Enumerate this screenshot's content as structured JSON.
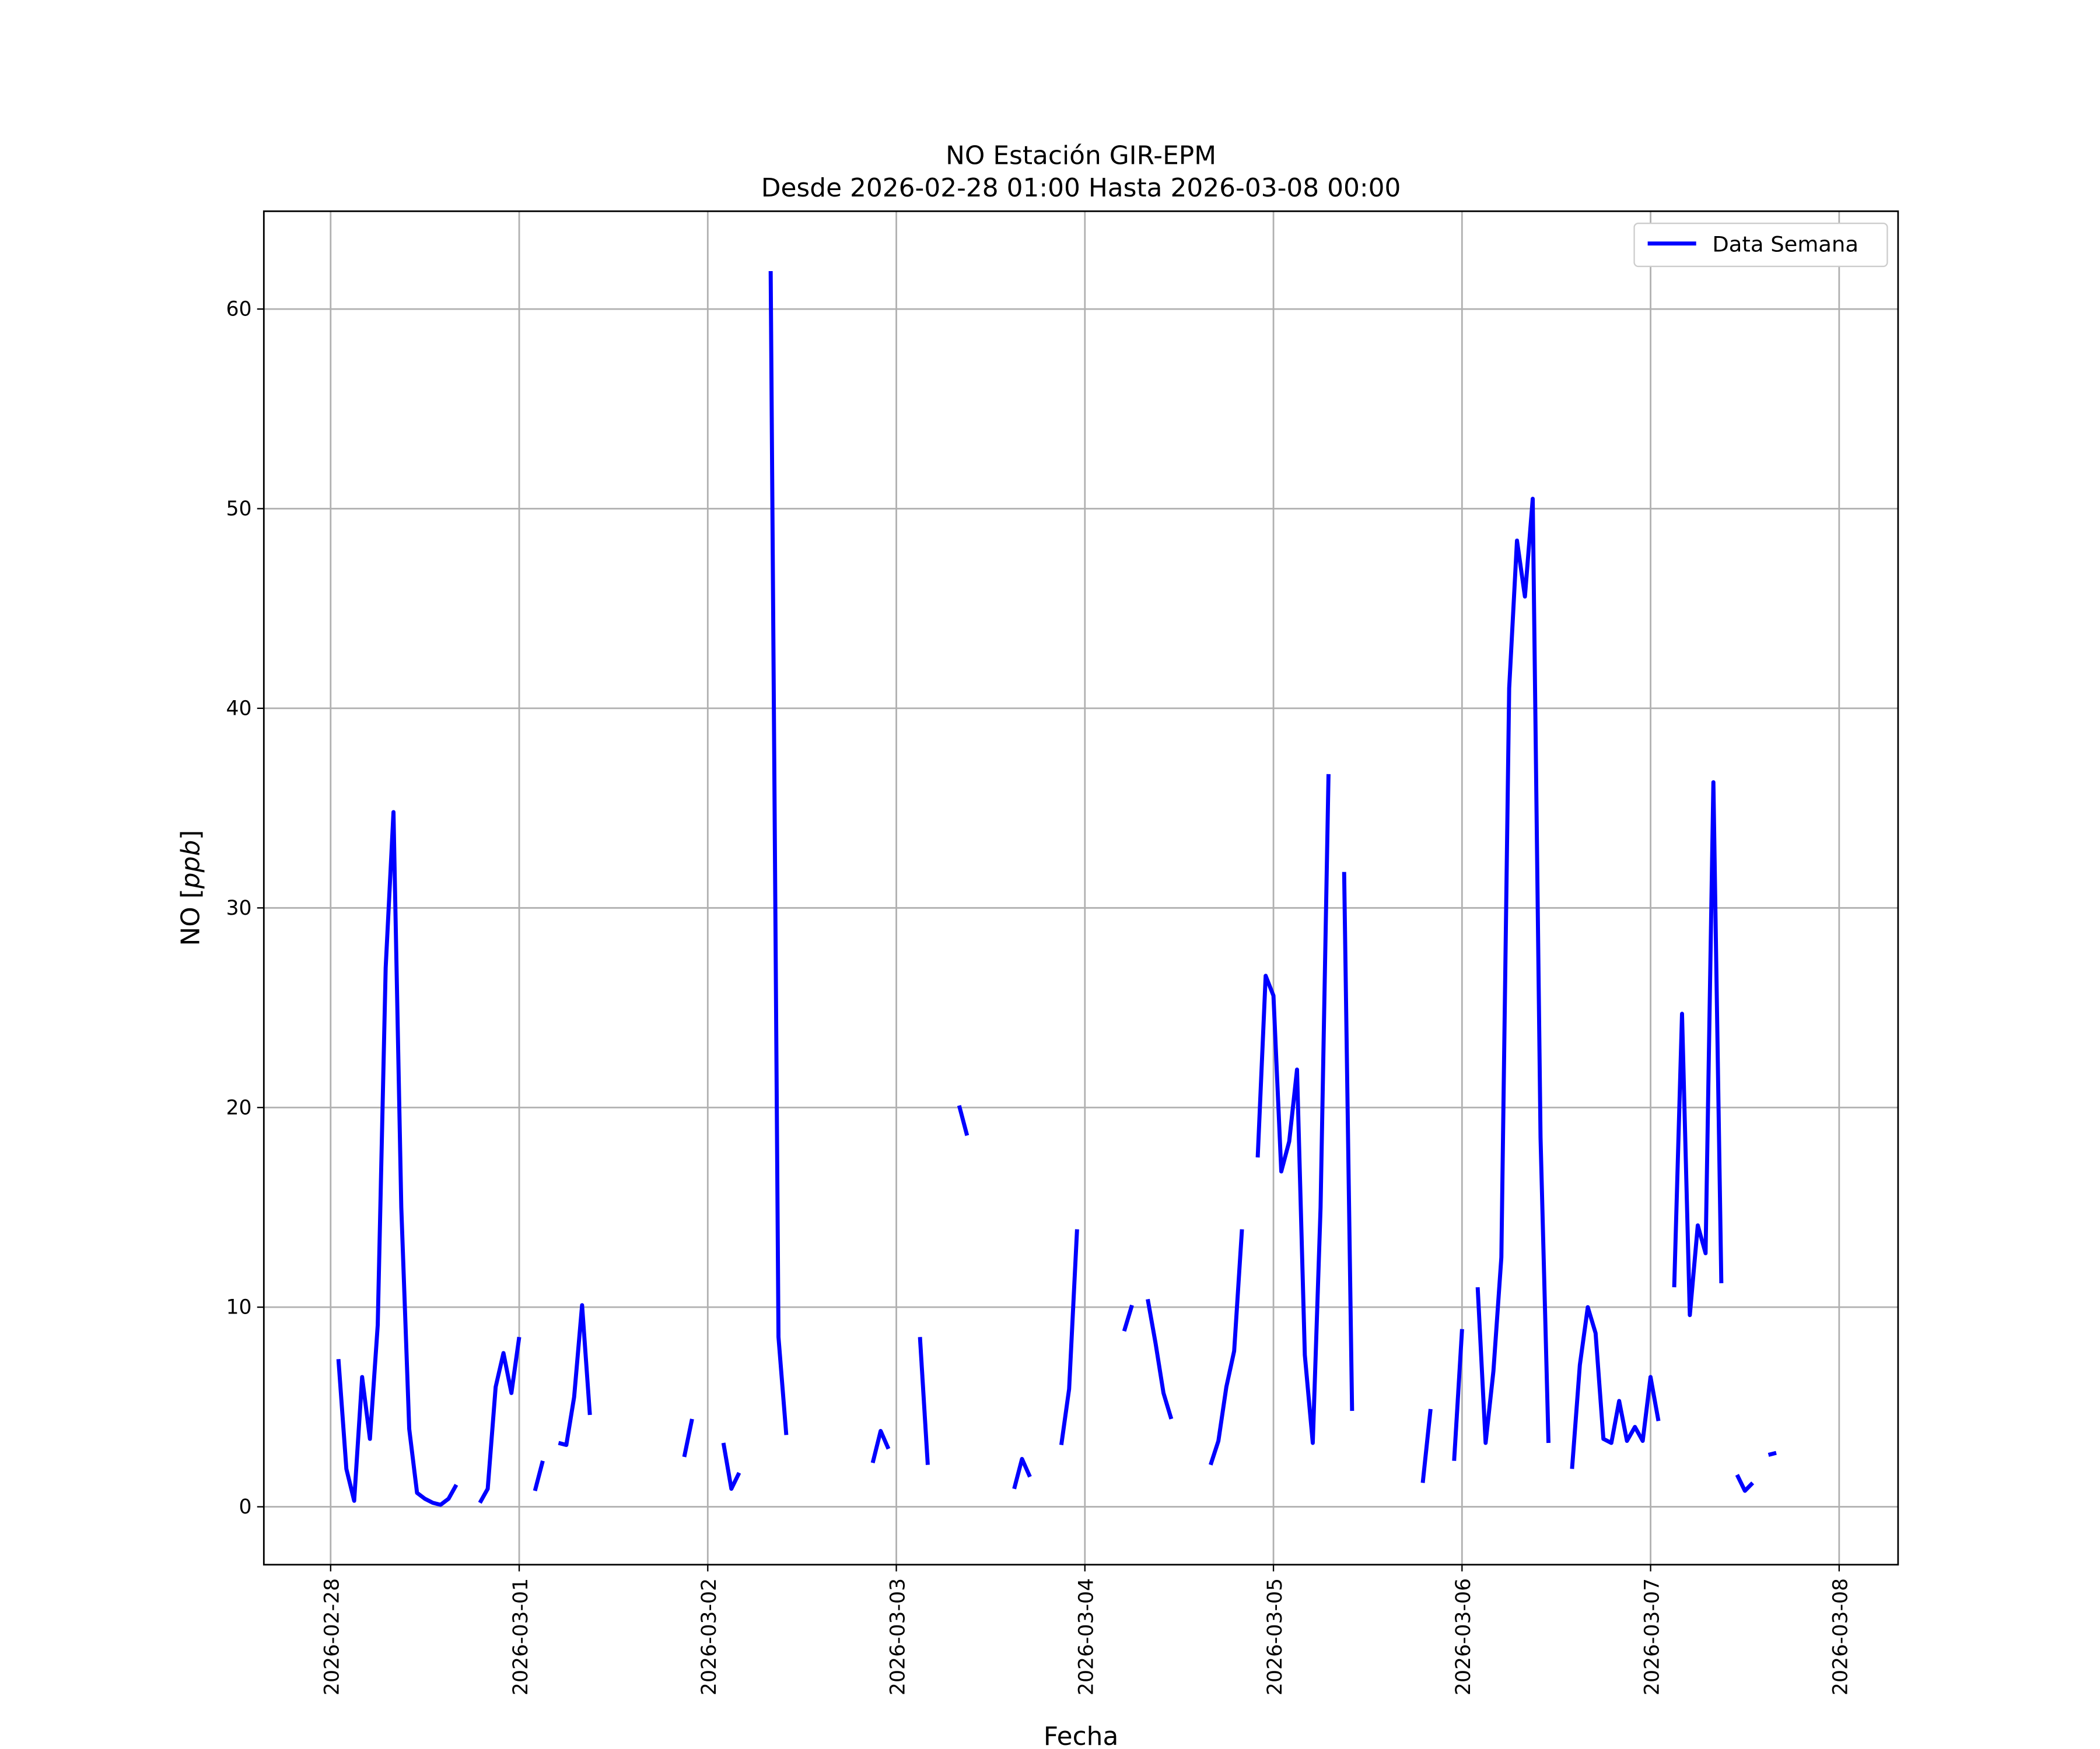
{
  "chart_data": {
    "type": "line",
    "title": "NO Estación GIR-EPM",
    "subtitle": "Desde 2026-02-28 01:00 Hasta 2026-03-08 00:00",
    "xlabel": "Fecha",
    "ylabel_prefix": "NO [",
    "ylabel_unit": "ppb",
    "ylabel_suffix": "]",
    "xlim": [
      "2026-02-27 15:30",
      "2026-03-08 07:30"
    ],
    "ylim": [
      -2.9,
      64.9
    ],
    "xticks": [
      "2026-02-28",
      "2026-03-01",
      "2026-03-02",
      "2026-03-03",
      "2026-03-04",
      "2026-03-05",
      "2026-03-06",
      "2026-03-07",
      "2026-03-08"
    ],
    "yticks": [
      0,
      10,
      20,
      30,
      40,
      50,
      60
    ],
    "grid": true,
    "legend_position": "top-right",
    "colors": {
      "series": "#0000ff",
      "grid": "#b0b0b0"
    },
    "series": [
      {
        "name": "Data Semana",
        "interval_hours": 1,
        "segments": [
          {
            "start": "2026-02-28 01:00",
            "values": [
              7.4,
              1.9,
              0.3,
              6.5,
              3.4,
              9.1,
              27,
              34.8,
              15,
              3.9,
              0.7,
              0.4,
              0.2,
              0.1,
              0.4,
              1.1
            ]
          },
          {
            "start": "2026-02-28 19:00",
            "values": [
              0.2,
              0.9,
              6.0,
              7.7,
              5.7,
              8.5
            ]
          },
          {
            "start": "2026-03-01 02:00",
            "values": [
              0.8,
              2.3
            ]
          },
          {
            "start": "2026-03-01 05:00",
            "values": [
              3.2,
              3.1,
              5.5,
              10.1,
              4.6
            ]
          },
          {
            "start": "2026-03-01 21:00",
            "values": [
              2.5,
              4.4
            ]
          },
          {
            "start": "2026-03-02 02:00",
            "values": [
              3.2,
              0.9,
              1.7
            ]
          },
          {
            "start": "2026-03-02 08:00",
            "values": [
              61.9,
              8.5,
              3.6
            ]
          },
          {
            "start": "2026-03-02 21:00",
            "values": [
              2.2,
              3.8,
              2.9
            ]
          },
          {
            "start": "2026-03-03 03:00",
            "values": [
              8.5,
              2.1
            ]
          },
          {
            "start": "2026-03-03 08:00",
            "values": [
              20.1,
              18.6
            ]
          },
          {
            "start": "2026-03-03 15:00",
            "values": [
              0.9,
              2.4,
              1.5
            ]
          },
          {
            "start": "2026-03-03 21:00",
            "values": [
              3.1,
              5.9,
              13.9
            ]
          },
          {
            "start": "2026-03-04 05:00",
            "values": [
              8.8,
              10.1
            ]
          },
          {
            "start": "2026-03-04 08:00",
            "values": [
              10.4,
              8.2,
              5.7,
              4.4
            ]
          },
          {
            "start": "2026-03-04 16:00",
            "values": [
              2.1,
              3.3,
              6.0,
              7.8,
              13.9
            ]
          },
          {
            "start": "2026-03-04 22:00",
            "values": [
              17.5,
              26.6,
              25.6,
              16.8,
              18.3,
              21.9,
              7.6,
              3.2,
              15,
              36.7
            ]
          },
          {
            "start": "2026-03-05 09:00",
            "values": [
              31.8,
              4.8
            ]
          },
          {
            "start": "2026-03-05 19:00",
            "values": [
              1.2,
              4.9
            ]
          },
          {
            "start": "2026-03-05 23:00",
            "values": [
              2.3,
              8.9
            ]
          },
          {
            "start": "2026-03-06 02:00",
            "values": [
              11,
              3.2,
              6.8,
              12.5,
              41,
              48.4,
              45.6,
              50.5,
              18.5,
              3.2
            ]
          },
          {
            "start": "2026-03-06 14:00",
            "values": [
              1.9,
              7.1,
              10.0,
              8.7,
              3.4,
              3.2,
              5.3,
              3.3,
              4.0,
              3.3,
              6.5,
              4.3
            ]
          },
          {
            "start": "2026-03-07 03:00",
            "values": [
              11,
              24.7,
              9.6,
              14.1,
              12.7,
              36.3,
              11.2
            ]
          },
          {
            "start": "2026-03-07 11:00",
            "values": [
              1.6,
              0.8,
              1.2
            ]
          },
          {
            "start": "2026-03-07 15:00",
            "values": [
              2.6,
              2.7
            ]
          }
        ]
      }
    ]
  }
}
